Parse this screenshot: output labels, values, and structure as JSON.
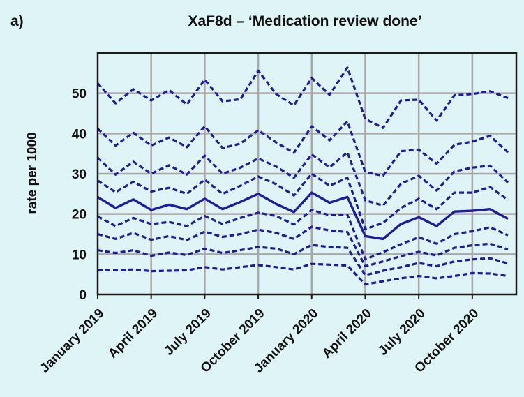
{
  "panel_label": "a)",
  "chart_data": {
    "type": "line",
    "title": "XaF8d – ‘Medication review done’",
    "xlabel": "",
    "ylabel": "rate per 1000",
    "ylim": [
      0,
      60
    ],
    "yticks": [
      0,
      10,
      20,
      30,
      40,
      50
    ],
    "x": [
      "January 2019",
      "February 2019",
      "March 2019",
      "April 2019",
      "May 2019",
      "June 2019",
      "July 2019",
      "August 2019",
      "September 2019",
      "October 2019",
      "November 2019",
      "December 2019",
      "January 2020",
      "February 2020",
      "March 2020",
      "April 2020",
      "May 2020",
      "June 2020",
      "July 2020",
      "August 2020",
      "September 2020",
      "October 2020",
      "November 2020",
      "December 2020"
    ],
    "x_tick_labels": [
      "January 2019",
      "April 2019",
      "July 2019",
      "October 2019",
      "January 2020",
      "April 2020",
      "July 2020",
      "October 2020"
    ],
    "grid": true,
    "colors": {
      "series": "#1c1c9c",
      "grid": "#a8a8a8",
      "frame": "#1a1a1a"
    },
    "series": [
      {
        "style": "dashed",
        "values": [
          6,
          6,
          6.2,
          5.8,
          5.9,
          6,
          6.8,
          6.2,
          6.8,
          7.3,
          6.8,
          6.2,
          7.6,
          7.4,
          7.2,
          2.5,
          3.3,
          4,
          4.6,
          4,
          4.6,
          5.3,
          5.2,
          4.6
        ]
      },
      {
        "style": "dashed",
        "values": [
          11,
          10.3,
          11,
          9.6,
          10.4,
          9.8,
          11.4,
          10.3,
          11,
          11.8,
          11.4,
          10,
          12.3,
          11.8,
          11.6,
          4.8,
          5.9,
          6.8,
          7.8,
          7,
          8.2,
          8.7,
          9,
          7.7
        ]
      },
      {
        "style": "dashed",
        "values": [
          15,
          13.8,
          15.3,
          13.6,
          14.5,
          13.5,
          15.6,
          14.3,
          15,
          16.1,
          15.3,
          13.8,
          16.8,
          15.9,
          15.5,
          7,
          8.2,
          9.5,
          10.6,
          9.7,
          11.6,
          12.2,
          12.6,
          11.2
        ]
      },
      {
        "style": "dashed",
        "values": [
          19.4,
          17,
          19,
          17.5,
          18,
          17,
          19.5,
          17.5,
          19,
          20.3,
          19.5,
          17.4,
          21,
          19.7,
          19.8,
          8.7,
          10.5,
          12.5,
          14.2,
          12.6,
          15,
          15.7,
          16.7,
          14.7
        ]
      },
      {
        "style": "solid",
        "values": [
          24.2,
          21.5,
          23.6,
          21,
          22.3,
          21.2,
          23.8,
          21.2,
          23,
          25,
          22.5,
          20.5,
          25.3,
          22.8,
          24.2,
          14.5,
          13.8,
          17.5,
          19.2,
          17,
          20.6,
          20.8,
          21.2,
          18.8
        ]
      },
      {
        "style": "dashed",
        "values": [
          28.3,
          25.4,
          28,
          25.6,
          26.5,
          25,
          28.5,
          25,
          27,
          29.3,
          27.4,
          24.6,
          30,
          27,
          29,
          16.2,
          17.8,
          21.5,
          23.8,
          21.2,
          25.3,
          25.3,
          26.7,
          23.5
        ]
      },
      {
        "style": "dashed",
        "values": [
          34,
          29.8,
          33,
          30,
          32.1,
          29.8,
          34.5,
          30,
          31.5,
          33.8,
          31.8,
          29,
          34.8,
          31.6,
          35.3,
          23.4,
          22.1,
          27.5,
          29.5,
          25.8,
          30.6,
          31.5,
          32,
          27.8
        ]
      },
      {
        "style": "dashed",
        "values": [
          41.2,
          37,
          40.2,
          37,
          39,
          36.6,
          41.8,
          36.4,
          37.5,
          40.8,
          37.8,
          35.2,
          41.8,
          38.3,
          43,
          30.4,
          29.5,
          35.6,
          36,
          32.5,
          37.2,
          38,
          39.4,
          35.3
        ]
      },
      {
        "style": "dashed",
        "values": [
          52.5,
          47.5,
          51,
          48.2,
          50.8,
          47.2,
          53.4,
          48,
          48.5,
          55.6,
          49.8,
          47,
          53.8,
          49.6,
          56.4,
          43.6,
          41.4,
          48.2,
          48.4,
          43.2,
          49.5,
          49.8,
          50.5,
          48.8
        ]
      }
    ]
  }
}
